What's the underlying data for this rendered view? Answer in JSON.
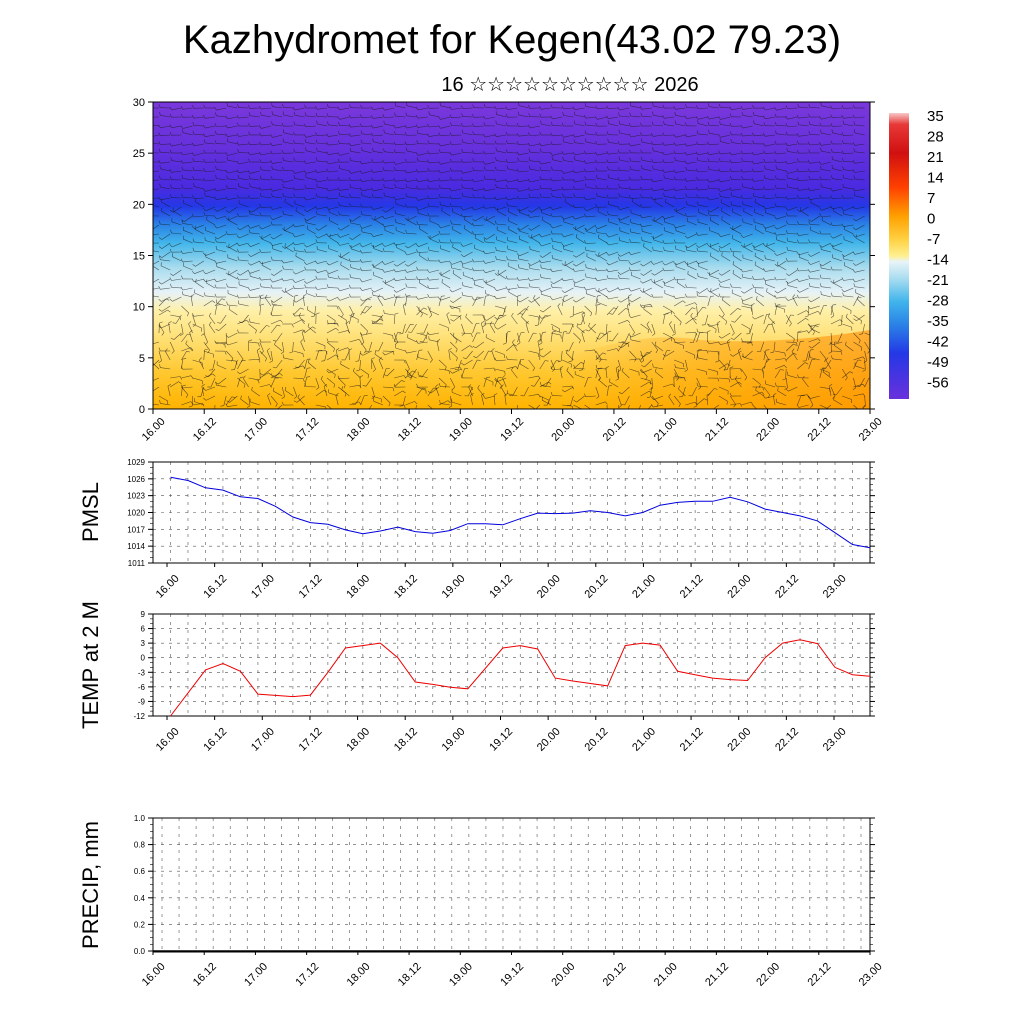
{
  "header": {
    "title": "Kazhydromet for Kegen(43.02 79.23)",
    "subtitle": "16 ☆☆☆☆☆☆☆☆☆☆ 2026"
  },
  "colors": {
    "pmsl_line": "#0000dd",
    "temp_line": "#ee0000",
    "frame": "#000000",
    "grid": "#555555"
  },
  "time_labels": [
    "16.00",
    "16.12",
    "17.00",
    "17.12",
    "18.00",
    "18.12",
    "19.00",
    "19.12",
    "20.00",
    "20.12",
    "21.00",
    "21.12",
    "22.00",
    "22.12",
    "23.00"
  ],
  "chart_data": [
    {
      "type": "heatmap",
      "name": "cross-section",
      "ylim": [
        0,
        30
      ],
      "yticks": [
        0,
        5,
        10,
        15,
        20,
        25,
        30
      ],
      "colorbar": {
        "labels": [
          "35",
          "28",
          "21",
          "14",
          "7",
          "0",
          "-7",
          "-14",
          "-21",
          "-28",
          "-35",
          "-42",
          "-49",
          "-56"
        ]
      }
    },
    {
      "type": "line",
      "name": "pmsl",
      "ylabel": "PMSL",
      "ylim": [
        1011,
        1029
      ],
      "yticks": [
        "1011",
        "1014",
        "1017",
        "1020",
        "1023",
        "1026",
        "1029"
      ],
      "xlim": [
        -1,
        40
      ],
      "x": [
        0,
        1,
        2,
        3,
        4,
        5,
        6,
        7,
        8,
        9,
        10,
        11,
        12,
        13,
        14,
        15,
        16,
        17,
        18,
        19,
        20,
        21,
        22,
        23,
        24,
        25,
        26,
        27,
        28,
        29,
        30,
        31,
        32,
        33,
        34,
        35,
        36,
        37,
        38,
        39,
        40
      ],
      "values": [
        1026.3,
        1025.7,
        1024.4,
        1024.0,
        1022.8,
        1022.5,
        1021.1,
        1019.2,
        1018.2,
        1017.9,
        1016.9,
        1016.2,
        1016.7,
        1017.4,
        1016.6,
        1016.3,
        1016.8,
        1018.0,
        1018.0,
        1017.8,
        1018.9,
        1019.9,
        1019.8,
        1019.9,
        1020.3,
        1020.0,
        1019.4,
        1020.0,
        1021.3,
        1021.8,
        1022.0,
        1022.0,
        1022.7,
        1021.9,
        1020.6,
        1020.0,
        1019.4,
        1018.5,
        1016.4,
        1014.3,
        1013.7
      ]
    },
    {
      "type": "line",
      "name": "temp",
      "ylabel": "TEMP at 2 M",
      "ylim": [
        -12,
        9
      ],
      "yticks": [
        "-12",
        "-9",
        "-6",
        "-3",
        "0",
        "3",
        "6",
        "9"
      ],
      "xlim": [
        -1,
        40
      ],
      "x": [
        0,
        2,
        3,
        4,
        5,
        7,
        8,
        9,
        10,
        12,
        13,
        14,
        15,
        16,
        17,
        19,
        20,
        21,
        22,
        23,
        25,
        26,
        27,
        28,
        29,
        30,
        31,
        32,
        33,
        34,
        35,
        36,
        37,
        38,
        39,
        40
      ],
      "values": [
        -12.0,
        -2.5,
        -1.2,
        -2.8,
        -7.5,
        -8.0,
        -7.7,
        -3.0,
        2.0,
        3.0,
        0.0,
        -5.0,
        -5.5,
        -6.1,
        -6.4,
        2.0,
        2.5,
        1.8,
        -4.2,
        -4.8,
        -5.8,
        2.5,
        3.0,
        2.6,
        -2.8,
        -3.5,
        -4.2,
        -4.5,
        -4.7,
        0.0,
        3.0,
        3.7,
        2.9,
        -2.0,
        -3.5,
        -3.8
      ]
    },
    {
      "type": "line",
      "name": "precip",
      "ylabel": "PRECIP, mm",
      "ylim": [
        0,
        1.0
      ],
      "yticks": [
        "0.0",
        "0.2",
        "0.4",
        "0.6",
        "0.8",
        "1.0"
      ],
      "values": []
    }
  ]
}
